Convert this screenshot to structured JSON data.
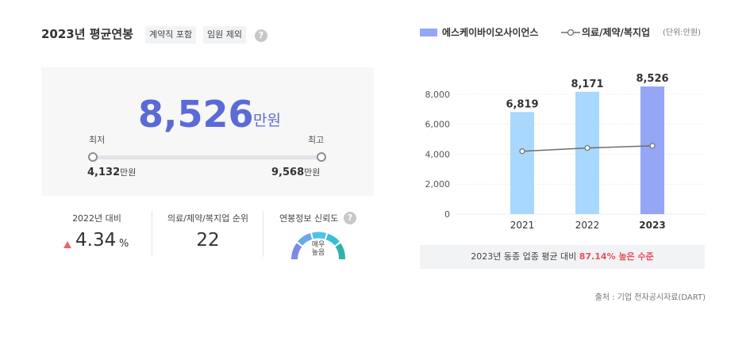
{
  "header": {
    "title": "2023년 평균연봉",
    "tag_contract": "계약직 포함",
    "tag_exec": "임원 제외",
    "help": "?"
  },
  "salary": {
    "average": "8,526",
    "unit": "만원",
    "min_label": "최저",
    "max_label": "최고",
    "min_value": "4,132",
    "max_value": "9,568",
    "small_unit": "만원"
  },
  "stats": {
    "yoy_label": "2022년 대비",
    "yoy_value": "4.34",
    "yoy_unit": "%",
    "rank_label": "의료/제약/복지업 순위",
    "rank_value": "22",
    "reliability_label": "연봉정보 신뢰도",
    "reliability_value": "매우 높음",
    "reliability_level": 1.0
  },
  "legend": {
    "company": "에스케이바이오사이언스",
    "industry": "의료/제약/복지업",
    "unit": "(단위:만원)"
  },
  "colors": {
    "accent": "#5a6ad6",
    "bar_light": "#a8d8fd",
    "bar_current": "#94a6f5",
    "line": "#6e6e6e",
    "highlight": "#e8505b"
  },
  "chart_data": {
    "type": "bar",
    "categories": [
      "2021",
      "2022",
      "2023"
    ],
    "series": [
      {
        "name": "에스케이바이오사이언스",
        "type": "bar",
        "values": [
          6819,
          8171,
          8526
        ],
        "labels": [
          "6,819",
          "8,171",
          "8,526"
        ]
      },
      {
        "name": "의료/제약/복지업",
        "type": "line",
        "values": [
          4200,
          4420,
          4560
        ]
      }
    ],
    "yticks": [
      "0",
      "2,000",
      "4,000",
      "6,000",
      "8,000"
    ],
    "ylim": [
      0,
      8900
    ],
    "grid": true
  },
  "compare": {
    "prefix": "2023년 동종 업종 평균 대비",
    "value": "87.14% 높은 수준"
  },
  "source": "출처 : 기업 전자공시자료(DART)"
}
